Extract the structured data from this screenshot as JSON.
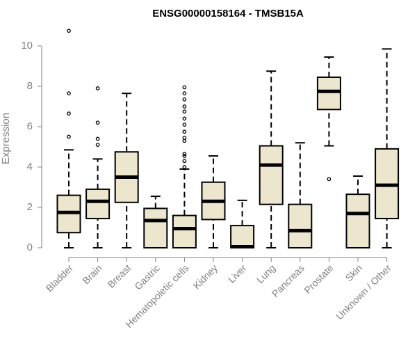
{
  "chart_data": {
    "type": "box",
    "title": "ENSG00000158164 - TMSB15A",
    "xlabel": "",
    "ylabel": "Expression",
    "ylim": [
      0,
      10.9
    ],
    "yticks": [
      "0",
      "2",
      "4",
      "6",
      "8",
      "10"
    ],
    "grid": false,
    "colors": {
      "box_fill": "#ede6cf",
      "stroke": "#000000",
      "axis": "#808080",
      "tick_text": "#808080"
    },
    "categories": [
      "Bladder",
      "Brain",
      "Breast",
      "Gastric",
      "Hematopoietic cells",
      "Kidney",
      "Liver",
      "Lung",
      "Pancreas",
      "Prostate",
      "Skin",
      "Unknown / Other"
    ],
    "boxes": [
      {
        "category": "Bladder",
        "whisker_low": 0.0,
        "q1": 0.75,
        "median": 1.75,
        "q3": 2.6,
        "whisker_high": 4.85,
        "outliers": [
          5.5,
          6.65,
          7.65,
          10.75
        ]
      },
      {
        "category": "Brain",
        "whisker_low": 0.0,
        "q1": 1.45,
        "median": 2.3,
        "q3": 2.9,
        "whisker_high": 4.4,
        "outliers": [
          5.1,
          5.4,
          6.2,
          7.9
        ]
      },
      {
        "category": "Breast",
        "whisker_low": 0.0,
        "q1": 2.25,
        "median": 3.5,
        "q3": 4.75,
        "whisker_high": 7.65,
        "outliers": []
      },
      {
        "category": "Gastric",
        "whisker_low": 0.0,
        "q1": 0.0,
        "median": 1.35,
        "q3": 1.95,
        "whisker_high": 2.55,
        "outliers": []
      },
      {
        "category": "Hematopoietic cells",
        "whisker_low": 0.0,
        "q1": 0.0,
        "median": 0.95,
        "q3": 1.6,
        "whisker_high": 3.9,
        "outliers": [
          4.0,
          4.3,
          4.55,
          4.65,
          5.3,
          5.45,
          5.75,
          6.1,
          6.4,
          6.75,
          7.0,
          7.35,
          7.65,
          7.95
        ]
      },
      {
        "category": "Kidney",
        "whisker_low": 0.0,
        "q1": 1.4,
        "median": 2.3,
        "q3": 3.25,
        "whisker_high": 4.55,
        "outliers": []
      },
      {
        "category": "Liver",
        "whisker_low": 0.0,
        "q1": 0.0,
        "median": 0.05,
        "q3": 1.1,
        "whisker_high": 2.35,
        "outliers": []
      },
      {
        "category": "Lung",
        "whisker_low": 0.0,
        "q1": 2.15,
        "median": 4.1,
        "q3": 5.05,
        "whisker_high": 8.75,
        "outliers": []
      },
      {
        "category": "Pancreas",
        "whisker_low": 0.0,
        "q1": 0.0,
        "median": 0.85,
        "q3": 2.15,
        "whisker_high": 5.2,
        "outliers": []
      },
      {
        "category": "Prostate",
        "whisker_low": 5.05,
        "q1": 6.85,
        "median": 7.75,
        "q3": 8.45,
        "whisker_high": 9.45,
        "outliers": [
          3.4
        ]
      },
      {
        "category": "Skin",
        "whisker_low": 0.0,
        "q1": 0.0,
        "median": 1.7,
        "q3": 2.65,
        "whisker_high": 3.55,
        "outliers": []
      },
      {
        "category": "Unknown / Other",
        "whisker_low": 0.0,
        "q1": 1.45,
        "median": 3.1,
        "q3": 4.9,
        "whisker_high": 9.85,
        "outliers": []
      }
    ]
  }
}
